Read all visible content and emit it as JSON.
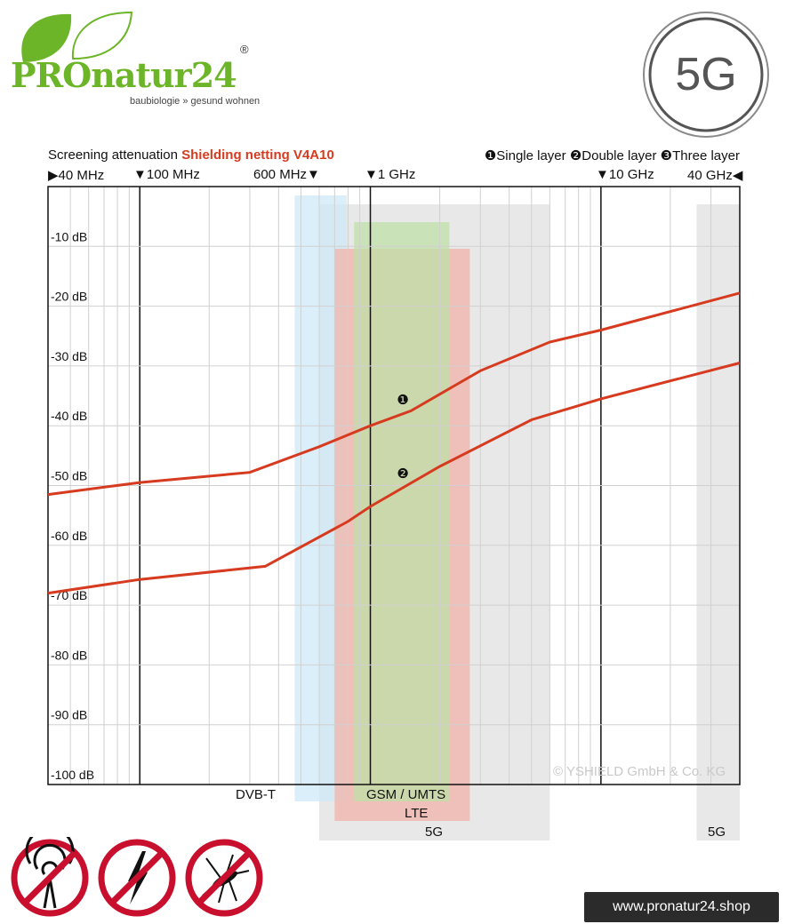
{
  "brand": {
    "name": "PROnatur24",
    "registered": "®",
    "tagline": "baubiologie » gesund wohnen",
    "accent_color": "#6cb528"
  },
  "badge": {
    "label": "5G"
  },
  "header": {
    "title_prefix": "Screening attenuation",
    "title_product": "Shielding netting V4A10",
    "legend": [
      {
        "marker": "❶",
        "label": "Single layer"
      },
      {
        "marker": "❷",
        "label": "Double layer"
      },
      {
        "marker": "❸",
        "label": "Three layer"
      }
    ]
  },
  "frequency_markers": [
    {
      "label": "40 MHz",
      "arrow": "▶",
      "side": "left"
    },
    {
      "label": "100 MHz",
      "arrow": "▼",
      "side": "left"
    },
    {
      "label": "600 MHz",
      "arrow": "▼",
      "side": "right"
    },
    {
      "label": "1 GHz",
      "arrow": "▼",
      "side": "left"
    },
    {
      "label": "10 GHz",
      "arrow": "▼",
      "side": "left"
    },
    {
      "label": "40 GHz",
      "arrow": "◀",
      "side": "right"
    }
  ],
  "watermark": "© YSHIELD GmbH & Co. KG",
  "bands": [
    {
      "label": "DVB-T",
      "from_mhz": 470,
      "to_mhz": 790,
      "color": "#cfe9f8"
    },
    {
      "label": "GSM / UMTS",
      "from_mhz": 850,
      "to_mhz": 2200,
      "color": "#bfe0a8"
    },
    {
      "label": "LTE",
      "from_mhz": 700,
      "to_mhz": 2700,
      "color": "#f2b3aa"
    },
    {
      "label": "5G",
      "from_mhz": 600,
      "to_mhz": 6000,
      "color": "#e0e0e0"
    },
    {
      "label": "5G",
      "from_mhz": 26000,
      "to_mhz": 40000,
      "color": "#e0e0e0"
    }
  ],
  "chart_data": {
    "type": "line",
    "x_scale": "log",
    "xlim_mhz": [
      40,
      40000
    ],
    "ylim": [
      -100,
      0
    ],
    "y_ticks": [
      "-10 dB",
      "-20 dB",
      "-30 dB",
      "-40 dB",
      "-50 dB",
      "-60 dB",
      "-70 dB",
      "-80 dB",
      "-90 dB",
      "-100 dB"
    ],
    "grid": true,
    "series_color": "#d63b20",
    "series": [
      {
        "name": "Single layer",
        "marker": "❶",
        "x_mhz": [
          40,
          100,
          300,
          600,
          1000,
          1500,
          3000,
          6000,
          10000,
          40000
        ],
        "y_db": [
          -51.5,
          -49.5,
          -47.8,
          -43.5,
          -40,
          -37.5,
          -30.8,
          -26,
          -24,
          -17.8
        ]
      },
      {
        "name": "Double layer",
        "marker": "❷",
        "x_mhz": [
          40,
          100,
          350,
          800,
          1000,
          2000,
          5000,
          10000,
          40000
        ],
        "y_db": [
          -68,
          -65.7,
          -63.5,
          -56,
          -53.5,
          -46.8,
          -39,
          -35.5,
          -29.5
        ]
      }
    ]
  },
  "prohibition_icons": [
    "no-radio-waves-icon",
    "no-electric-field-icon",
    "no-mosquito-icon"
  ],
  "shop_url": "www.pronatur24.shop"
}
